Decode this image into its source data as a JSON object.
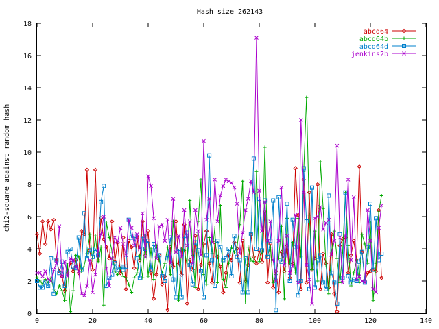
{
  "chart_data": {
    "type": "line",
    "title": "Hash size 262143",
    "xlabel": "",
    "ylabel": "chi2-square against random hash",
    "xlim": [
      0,
      140
    ],
    "ylim": [
      0,
      18
    ],
    "xticks": [
      "0",
      "20",
      "40",
      "60",
      "80",
      "100",
      "120",
      "140"
    ],
    "yticks": [
      "0",
      "2",
      "4",
      "6",
      "8",
      "10",
      "12",
      "14",
      "16",
      "18"
    ],
    "grid": false,
    "legend_position": "top-right",
    "series": [
      {
        "name": "abcd64",
        "color": "#cc0000",
        "marker": "diamond",
        "x": [
          0,
          1,
          2,
          3,
          4,
          5,
          6,
          7,
          8,
          9,
          10,
          11,
          12,
          13,
          14,
          15,
          16,
          17,
          18,
          19,
          20,
          21,
          22,
          23,
          24,
          25,
          26,
          27,
          28,
          29,
          30,
          31,
          32,
          33,
          34,
          35,
          36,
          37,
          38,
          39,
          40,
          41,
          42,
          43,
          44,
          45,
          46,
          47,
          48,
          49,
          50,
          51,
          52,
          53,
          54,
          55,
          56,
          57,
          58,
          59,
          60,
          61,
          62,
          63,
          64,
          65,
          66,
          67,
          68,
          69,
          70,
          71,
          72,
          73,
          74,
          75,
          76,
          77,
          78,
          79,
          80,
          81,
          82,
          83,
          84,
          85,
          86,
          87,
          88,
          89,
          90,
          91,
          92,
          93,
          94,
          95,
          96,
          97,
          98,
          99,
          100,
          101,
          102,
          103,
          104,
          105,
          106,
          107,
          108,
          109,
          110,
          111,
          112,
          113,
          114,
          115,
          116,
          117,
          118,
          119,
          120,
          121,
          122,
          123,
          124
        ],
        "values": [
          4.9,
          3.7,
          5.7,
          4.3,
          5.7,
          5.2,
          5.8,
          3.3,
          2.6,
          2.3,
          1.4,
          2.5,
          3.1,
          2.6,
          3.3,
          2.5,
          5.1,
          4.9,
          8.9,
          3.9,
          2.7,
          8.9,
          3.3,
          5.9,
          4.6,
          4.1,
          3.4,
          5.7,
          3.2,
          4.4,
          2.5,
          4.7,
          1.5,
          4.5,
          4.1,
          2.8,
          4.7,
          3.3,
          5.7,
          3.6,
          5.1,
          2.5,
          0.9,
          2.4,
          3.6,
          1.8,
          2.3,
          0.2,
          4.1,
          2.9,
          5.7,
          3.1,
          2.4,
          5.5,
          0.6,
          3.3,
          2.7,
          4.8,
          1.5,
          3.0,
          4.3,
          5.1,
          3.1,
          1.9,
          4.4,
          3.5,
          2.9,
          1.3,
          2.5,
          3.6,
          3.3,
          4.4,
          4.0,
          1.9,
          4.5,
          2.0,
          3.0,
          4.9,
          3.5,
          3.1,
          3.9,
          3.2,
          6.3,
          1.9,
          4.3,
          1.6,
          2.6,
          1.3,
          3.8,
          2.6,
          4.2,
          2.2,
          3.1,
          9.0,
          6.1,
          1.5,
          8.3,
          1.9,
          7.5,
          2.7,
          3.4,
          8.0,
          1.5,
          3.7,
          3.1,
          1.6,
          4.9,
          1.2,
          0.1,
          4.2,
          4.6,
          4.7,
          2.5,
          3.6,
          4.5,
          3.3,
          9.1,
          3.8,
          2.0,
          2.5,
          2.6,
          2.7,
          2.6,
          6.4,
          2.2
        ]
      },
      {
        "name": "abcd64b",
        "color": "#00aa00",
        "marker": "plus",
        "x": [
          0,
          1,
          2,
          3,
          4,
          5,
          6,
          7,
          8,
          9,
          10,
          11,
          12,
          13,
          14,
          15,
          16,
          17,
          18,
          19,
          20,
          21,
          22,
          23,
          24,
          25,
          26,
          27,
          28,
          29,
          30,
          31,
          32,
          33,
          34,
          35,
          36,
          37,
          38,
          39,
          40,
          41,
          42,
          43,
          44,
          45,
          46,
          47,
          48,
          49,
          50,
          51,
          52,
          53,
          54,
          55,
          56,
          57,
          58,
          59,
          60,
          61,
          62,
          63,
          64,
          65,
          66,
          67,
          68,
          69,
          70,
          71,
          72,
          73,
          74,
          75,
          76,
          77,
          78,
          79,
          80,
          81,
          82,
          83,
          84,
          85,
          86,
          87,
          88,
          89,
          90,
          91,
          92,
          93,
          94,
          95,
          96,
          97,
          98,
          99,
          100,
          101,
          102,
          103,
          104,
          105,
          106,
          107,
          108,
          109,
          110,
          111,
          112,
          113,
          114,
          115,
          116,
          117,
          118,
          119,
          120,
          121,
          122,
          123,
          124
        ],
        "values": [
          2.2,
          2.0,
          1.8,
          2.1,
          1.9,
          2.2,
          1.5,
          1.2,
          1.7,
          1.4,
          0.8,
          3.0,
          0.1,
          1.4,
          3.6,
          3.5,
          2.6,
          3.0,
          3.7,
          4.9,
          3.3,
          4.8,
          3.2,
          4.1,
          0.5,
          5.6,
          4.7,
          3.8,
          2.6,
          2.4,
          2.8,
          2.3,
          2.2,
          1.8,
          1.3,
          2.2,
          2.5,
          3.6,
          2.2,
          4.8,
          2.3,
          4.0,
          2.1,
          4.2,
          3.3,
          2.5,
          3.1,
          4.1,
          2.4,
          5.7,
          3.8,
          0.8,
          4.0,
          3.9,
          3.0,
          7.0,
          3.6,
          1.6,
          5.7,
          8.3,
          2.4,
          1.8,
          4.7,
          3.7,
          5.3,
          1.9,
          6.7,
          2.1,
          1.6,
          3.1,
          4.1,
          3.8,
          4.1,
          5.5,
          8.2,
          0.7,
          4.1,
          3.3,
          3.2,
          8.8,
          3.2,
          3.8,
          10.3,
          3.6,
          4.1,
          1.9,
          2.4,
          3.4,
          5.4,
          0.9,
          5.9,
          3.1,
          4.4,
          2.5,
          5.9,
          3.5,
          8.8,
          13.4,
          6.1,
          2.7,
          5.1,
          2.0,
          9.4,
          6.5,
          3.0,
          1.2,
          3.8,
          5.1,
          3.4,
          1.9,
          3.8,
          7.5,
          4.2,
          1.7,
          2.5,
          3.3,
          1.9,
          4.9,
          4.3,
          3.1,
          5.6,
          0.8,
          3.1,
          6.3,
          7.3
        ]
      },
      {
        "name": "abcd64d",
        "color": "#0080cc",
        "marker": "square",
        "x": [
          0,
          1,
          2,
          3,
          4,
          5,
          6,
          7,
          8,
          9,
          10,
          11,
          12,
          13,
          14,
          15,
          16,
          17,
          18,
          19,
          20,
          21,
          22,
          23,
          24,
          25,
          26,
          27,
          28,
          29,
          30,
          31,
          32,
          33,
          34,
          35,
          36,
          37,
          38,
          39,
          40,
          41,
          42,
          43,
          44,
          45,
          46,
          47,
          48,
          49,
          50,
          51,
          52,
          53,
          54,
          55,
          56,
          57,
          58,
          59,
          60,
          61,
          62,
          63,
          64,
          65,
          66,
          67,
          68,
          69,
          70,
          71,
          72,
          73,
          74,
          75,
          76,
          77,
          78,
          79,
          80,
          81,
          82,
          83,
          84,
          85,
          86,
          87,
          88,
          89,
          90,
          91,
          92,
          93,
          94,
          95,
          96,
          97,
          98,
          99,
          100,
          101,
          102,
          103,
          104,
          105,
          106,
          107,
          108,
          109,
          110,
          111,
          112,
          113,
          114,
          115,
          116,
          117,
          118,
          119,
          120,
          121,
          122,
          123,
          124
        ],
        "values": [
          2.0,
          1.6,
          1.6,
          1.9,
          1.7,
          3.4,
          1.2,
          3.3,
          2.5,
          3.2,
          1.7,
          3.8,
          4.0,
          2.9,
          2.8,
          4.7,
          2.7,
          6.2,
          3.4,
          3.9,
          3.5,
          4.0,
          3.6,
          6.9,
          7.9,
          1.7,
          2.2,
          2.4,
          3.1,
          2.7,
          2.9,
          2.7,
          2.9,
          5.8,
          4.7,
          4.8,
          3.4,
          2.2,
          4.8,
          4.0,
          4.5,
          2.7,
          4.3,
          3.9,
          3.6,
          2.3,
          2.0,
          3.4,
          4.7,
          2.1,
          1.0,
          4.0,
          1.0,
          4.8,
          5.0,
          3.0,
          1.8,
          4.4,
          3.9,
          2.6,
          1.0,
          3.6,
          9.8,
          3.3,
          1.7,
          4.5,
          4.1,
          3.3,
          3.4,
          4.0,
          2.3,
          4.8,
          3.5,
          3.3,
          1.3,
          3.4,
          1.3,
          4.9,
          9.6,
          4.0,
          7.1,
          3.9,
          7.0,
          3.5,
          4.5,
          7.0,
          0.2,
          7.2,
          3.2,
          3.6,
          6.8,
          2.0,
          5.8,
          4.1,
          1.1,
          2.0,
          9.0,
          5.7,
          1.5,
          7.8,
          1.6,
          3.3,
          3.6,
          1.9,
          1.5,
          7.3,
          2.5,
          1.9,
          0.6,
          4.9,
          2.2,
          7.5,
          2.3,
          1.9,
          2.1,
          2.0,
          3.2,
          3.8,
          1.9,
          4.1,
          6.8,
          2.7,
          5.9,
          3.3,
          3.7
        ]
      },
      {
        "name": "jenkins2b",
        "color": "#aa00cc",
        "marker": "cross",
        "x": [
          0,
          1,
          2,
          3,
          4,
          5,
          6,
          7,
          8,
          9,
          10,
          11,
          12,
          13,
          14,
          15,
          16,
          17,
          18,
          19,
          20,
          21,
          22,
          23,
          24,
          25,
          26,
          27,
          28,
          29,
          30,
          31,
          32,
          33,
          34,
          35,
          36,
          37,
          38,
          39,
          40,
          41,
          42,
          43,
          44,
          45,
          46,
          47,
          48,
          49,
          50,
          51,
          52,
          53,
          54,
          55,
          56,
          57,
          58,
          59,
          60,
          61,
          62,
          63,
          64,
          65,
          66,
          67,
          68,
          69,
          70,
          71,
          72,
          73,
          74,
          75,
          76,
          77,
          78,
          79,
          80,
          81,
          82,
          83,
          84,
          85,
          86,
          87,
          88,
          89,
          90,
          91,
          92,
          93,
          94,
          95,
          96,
          97,
          98,
          99,
          100,
          101,
          102,
          103,
          104,
          105,
          106,
          107,
          108,
          109,
          110,
          111,
          112,
          113,
          114,
          115,
          116,
          117,
          118,
          119,
          120,
          121,
          122,
          123,
          124
        ],
        "values": [
          2.5,
          2.5,
          2.3,
          2.6,
          2.1,
          2.0,
          2.7,
          3.1,
          5.4,
          2.3,
          3.2,
          2.3,
          3.4,
          3.3,
          2.9,
          2.6,
          1.2,
          1.1,
          1.7,
          3.3,
          1.3,
          2.4,
          3.9,
          4.9,
          6.0,
          2.8,
          1.7,
          3.4,
          4.7,
          4.4,
          5.3,
          4.3,
          3.6,
          5.8,
          5.3,
          4.2,
          4.9,
          4.0,
          6.2,
          3.5,
          8.5,
          7.9,
          5.9,
          3.4,
          5.4,
          5.5,
          4.5,
          5.8,
          3.1,
          7.1,
          3.8,
          4.8,
          3.5,
          6.4,
          4.2,
          5.7,
          3.1,
          6.4,
          5.1,
          3.6,
          10.7,
          5.8,
          7.1,
          4.4,
          8.3,
          5.7,
          7.3,
          7.9,
          8.3,
          8.2,
          8.1,
          7.8,
          6.8,
          3.7,
          5.0,
          6.4,
          7.1,
          8.2,
          7.5,
          17.1,
          7.6,
          5.1,
          6.9,
          4.5,
          5.7,
          3.3,
          2.0,
          4.5,
          7.8,
          3.0,
          4.8,
          2.5,
          2.9,
          6.1,
          1.9,
          12.0,
          7.5,
          3.0,
          2.1,
          0.6,
          5.9,
          6.0,
          6.6,
          5.2,
          5.6,
          5.8,
          3.6,
          4.5,
          10.4,
          4.7,
          1.9,
          4.8,
          8.3,
          3.3,
          7.2,
          2.1,
          2.3,
          2.0,
          1.9,
          6.4,
          4.5,
          1.5,
          1.3,
          5.3,
          6.7
        ]
      }
    ]
  }
}
